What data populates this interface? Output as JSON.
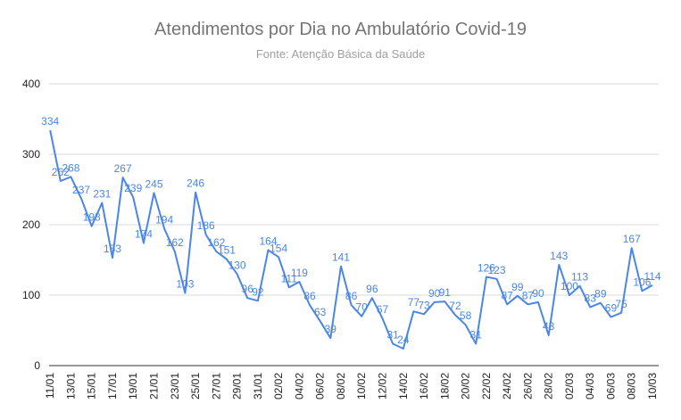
{
  "chart_data": {
    "type": "line",
    "title": "Atendimentos por Dia no Ambulatório Covid-19",
    "subtitle": "Fonte: Atenção Básica da Saúde",
    "xlabel": "",
    "ylabel": "",
    "ylim": [
      0,
      400
    ],
    "yticks": [
      0,
      100,
      200,
      300,
      400
    ],
    "grid": true,
    "legend": "none",
    "line_color": "#4a86e8",
    "x": [
      "11/01",
      "12/01",
      "13/01",
      "14/01",
      "15/01",
      "16/01",
      "17/01",
      "18/01",
      "19/01",
      "20/01",
      "21/01",
      "22/01",
      "23/01",
      "24/01",
      "25/01",
      "26/01",
      "27/01",
      "28/01",
      "29/01",
      "30/01",
      "31/01",
      "01/02",
      "02/02",
      "03/02",
      "04/02",
      "05/02",
      "06/02",
      "07/02",
      "08/02",
      "09/02",
      "10/02",
      "11/02",
      "12/02",
      "13/02",
      "14/02",
      "15/02",
      "16/02",
      "17/02",
      "18/02",
      "19/02",
      "20/02",
      "21/02",
      "22/02",
      "23/02",
      "24/02",
      "25/02",
      "26/02",
      "27/02",
      "28/02",
      "01/03",
      "02/03",
      "03/03",
      "04/03",
      "05/03",
      "06/03",
      "07/03",
      "08/03",
      "09/03",
      "10/03"
    ],
    "values": [
      334,
      262,
      268,
      237,
      198,
      231,
      153,
      267,
      239,
      174,
      245,
      194,
      162,
      103,
      246,
      186,
      162,
      151,
      130,
      96,
      92,
      164,
      154,
      111,
      119,
      86,
      63,
      39,
      141,
      86,
      70,
      96,
      67,
      31,
      24,
      77,
      73,
      90,
      91,
      72,
      58,
      31,
      126,
      123,
      87,
      99,
      87,
      90,
      43,
      143,
      100,
      113,
      83,
      89,
      69,
      75,
      167,
      106,
      114
    ],
    "tick_labels": [
      "11/01",
      "13/01",
      "15/01",
      "17/01",
      "19/01",
      "21/01",
      "23/01",
      "25/01",
      "27/01",
      "29/01",
      "31/01",
      "02/02",
      "04/02",
      "06/02",
      "08/02",
      "10/02",
      "12/02",
      "14/02",
      "16/02",
      "18/02",
      "20/02",
      "22/02",
      "24/02",
      "26/02",
      "28/02",
      "02/03",
      "04/03",
      "06/03",
      "08/03",
      "10/03"
    ],
    "data_labels": [
      "334",
      "262",
      "268",
      "237",
      "198",
      "231",
      "153",
      "267",
      "239",
      "174",
      "245",
      "194",
      "162",
      "103",
      "246",
      "186",
      "162",
      "151",
      "130",
      "96",
      "92",
      "164",
      "154",
      "111",
      "119",
      "86",
      "63",
      "39",
      "141",
      "86",
      "70",
      "96",
      "67",
      "31",
      "24",
      "77",
      "73",
      "90",
      "91",
      "72",
      "58",
      "31",
      "126",
      "123",
      "87",
      "99",
      "87",
      "90",
      "43",
      "143",
      "100",
      "113",
      "83",
      "89",
      "69",
      "75",
      "167",
      "106",
      "114"
    ]
  }
}
